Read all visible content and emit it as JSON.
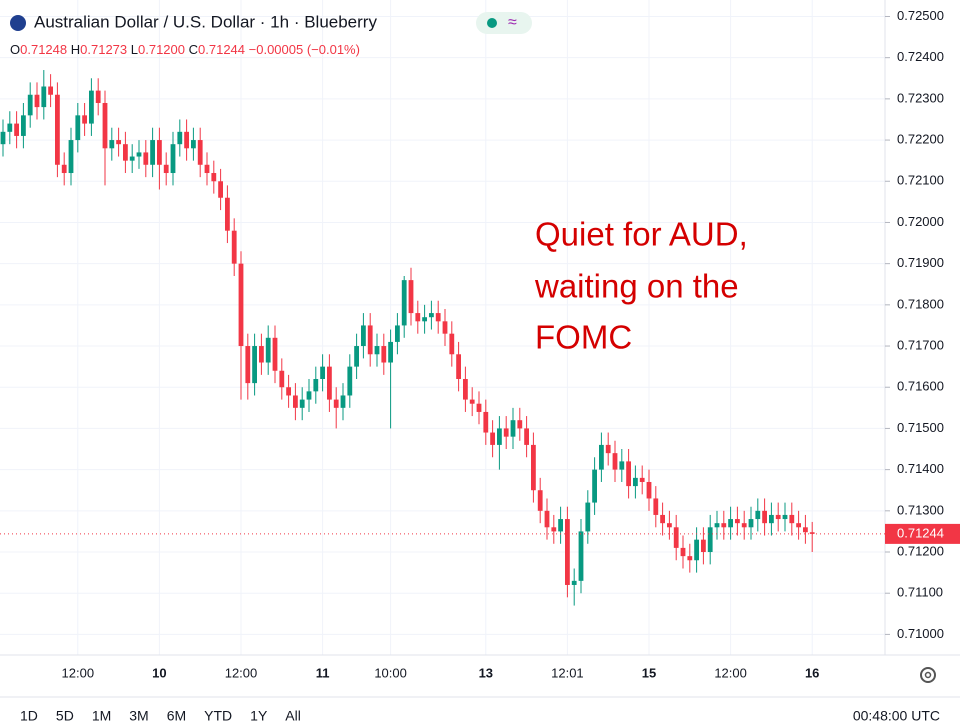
{
  "header": {
    "title": "Australian Dollar / U.S. Dollar · 1h · Blueberry",
    "ohlc": [
      {
        "key": "O",
        "value": "0.71248"
      },
      {
        "key": "H",
        "value": "0.71273"
      },
      {
        "key": "L",
        "value": "0.71200"
      },
      {
        "key": "C",
        "value": "0.71244"
      }
    ],
    "change": "−0.00005 (−0.01%)"
  },
  "toolbar": {
    "ranges": [
      "1D",
      "5D",
      "1M",
      "3M",
      "6M",
      "YTD",
      "1Y",
      "All"
    ],
    "clock": "00:48:00 UTC"
  },
  "chart_data": {
    "type": "candlestick",
    "annotation": [
      "Quiet for AUD,",
      "waiting on the",
      "FOMC"
    ],
    "last_price_label": "0.71244",
    "up_color": "#089981",
    "down_color": "#f23645",
    "grid": true,
    "categories": [
      null,
      null,
      null,
      null,
      null,
      null,
      null,
      null,
      null,
      null,
      null,
      "12:00",
      null,
      null,
      null,
      null,
      null,
      null,
      null,
      null,
      null,
      null,
      null,
      "10",
      null,
      null,
      null,
      null,
      null,
      null,
      null,
      null,
      null,
      null,
      null,
      "12:00",
      null,
      null,
      null,
      null,
      null,
      null,
      null,
      null,
      null,
      null,
      null,
      "11",
      null,
      null,
      null,
      null,
      null,
      null,
      null,
      null,
      null,
      "10:00",
      null,
      null,
      null,
      null,
      null,
      null,
      null,
      null,
      null,
      null,
      null,
      null,
      null,
      "13",
      null,
      null,
      null,
      null,
      null,
      null,
      null,
      null,
      null,
      null,
      null,
      "12:01",
      null,
      null,
      null,
      null,
      null,
      null,
      null,
      null,
      null,
      null,
      null,
      "15",
      null,
      null,
      null,
      null,
      null,
      null,
      null,
      null,
      null,
      null,
      null,
      "12:00",
      null,
      null,
      null,
      null,
      null,
      null,
      null,
      null,
      null,
      null,
      null,
      "16"
    ],
    "open": [
      0.7219,
      0.7222,
      0.7224,
      0.7221,
      0.7226,
      0.7231,
      0.7228,
      0.7233,
      0.7231,
      0.7214,
      0.7212,
      0.722,
      0.7226,
      0.7224,
      0.7232,
      0.7229,
      0.7218,
      0.722,
      0.7219,
      0.7215,
      0.7216,
      0.7217,
      0.7214,
      0.722,
      0.7214,
      0.7212,
      0.7219,
      0.7222,
      0.7218,
      0.722,
      0.7214,
      0.7212,
      0.721,
      0.7206,
      0.7198,
      0.719,
      0.717,
      0.7161,
      0.717,
      0.7166,
      0.7172,
      0.7164,
      0.716,
      0.7158,
      0.7155,
      0.7157,
      0.7159,
      0.7162,
      0.7165,
      0.7157,
      0.7155,
      0.7158,
      0.7165,
      0.717,
      0.7175,
      0.7168,
      0.717,
      0.7166,
      0.7171,
      0.7175,
      0.7186,
      0.7178,
      0.7176,
      0.7177,
      0.7178,
      0.7176,
      0.7173,
      0.7168,
      0.7162,
      0.7157,
      0.7156,
      0.7154,
      0.7149,
      0.7146,
      0.715,
      0.7148,
      0.7152,
      0.715,
      0.7146,
      0.7135,
      0.713,
      0.7126,
      0.7125,
      0.7128,
      0.7112,
      0.7113,
      0.7125,
      0.7132,
      0.714,
      0.7146,
      0.7144,
      0.714,
      0.7142,
      0.7136,
      0.7138,
      0.7137,
      0.7133,
      0.7129,
      0.7127,
      0.7126,
      0.7121,
      0.7119,
      0.7118,
      0.7123,
      0.712,
      0.7126,
      0.7127,
      0.7126,
      0.7128,
      0.7127,
      0.7126,
      0.7128,
      0.713,
      0.7127,
      0.7129,
      0.7128,
      0.7129,
      0.7127,
      0.7126,
      0.71248
    ],
    "high": [
      0.7225,
      0.7227,
      0.7227,
      0.7229,
      0.7234,
      0.7234,
      0.7237,
      0.7236,
      0.7234,
      0.7217,
      0.7223,
      0.7229,
      0.7229,
      0.7235,
      0.7235,
      0.7232,
      0.7223,
      0.7223,
      0.7222,
      0.7219,
      0.722,
      0.722,
      0.7223,
      0.7223,
      0.7217,
      0.7222,
      0.7225,
      0.7225,
      0.7223,
      0.7223,
      0.7217,
      0.7215,
      0.7213,
      0.7209,
      0.7201,
      0.7193,
      0.7173,
      0.7173,
      0.7173,
      0.7175,
      0.7175,
      0.7167,
      0.7163,
      0.7161,
      0.716,
      0.7162,
      0.7165,
      0.7168,
      0.7168,
      0.716,
      0.7161,
      0.7168,
      0.7173,
      0.7178,
      0.7178,
      0.7173,
      0.7173,
      0.7174,
      0.7178,
      0.7187,
      0.7189,
      0.7181,
      0.718,
      0.7181,
      0.7181,
      0.7179,
      0.7176,
      0.7171,
      0.7165,
      0.716,
      0.7159,
      0.7157,
      0.7152,
      0.7153,
      0.7153,
      0.7155,
      0.7155,
      0.7153,
      0.7149,
      0.7138,
      0.7133,
      0.7129,
      0.7131,
      0.7131,
      0.7116,
      0.7128,
      0.7135,
      0.7143,
      0.7149,
      0.7149,
      0.7147,
      0.7145,
      0.7145,
      0.7141,
      0.7141,
      0.714,
      0.7136,
      0.7132,
      0.713,
      0.7129,
      0.7124,
      0.7122,
      0.7126,
      0.7126,
      0.7129,
      0.713,
      0.713,
      0.7131,
      0.7131,
      0.713,
      0.7131,
      0.7133,
      0.7133,
      0.7132,
      0.7132,
      0.7132,
      0.7132,
      0.713,
      0.7129,
      0.71273
    ],
    "low": [
      0.7216,
      0.7219,
      0.7218,
      0.7218,
      0.7223,
      0.7225,
      0.7225,
      0.7228,
      0.7211,
      0.7209,
      0.7209,
      0.7217,
      0.7221,
      0.7221,
      0.7226,
      0.7209,
      0.7215,
      0.7216,
      0.7212,
      0.7212,
      0.7213,
      0.7211,
      0.7211,
      0.7208,
      0.7209,
      0.7209,
      0.7216,
      0.7215,
      0.7215,
      0.7211,
      0.7209,
      0.7207,
      0.7203,
      0.7195,
      0.7187,
      0.7157,
      0.7157,
      0.7158,
      0.7163,
      0.7163,
      0.7161,
      0.7157,
      0.7155,
      0.7152,
      0.7152,
      0.7154,
      0.7156,
      0.7159,
      0.7154,
      0.715,
      0.7152,
      0.7155,
      0.7162,
      0.7167,
      0.7165,
      0.7165,
      0.7163,
      0.715,
      0.7168,
      0.7172,
      0.7175,
      0.7173,
      0.7173,
      0.7174,
      0.7173,
      0.717,
      0.7165,
      0.7159,
      0.7154,
      0.7153,
      0.7151,
      0.7146,
      0.7143,
      0.714,
      0.7145,
      0.7145,
      0.7147,
      0.7143,
      0.7132,
      0.7127,
      0.7123,
      0.7122,
      0.7122,
      0.7109,
      0.7107,
      0.711,
      0.7122,
      0.7129,
      0.7137,
      0.7141,
      0.7137,
      0.7137,
      0.7133,
      0.7133,
      0.7134,
      0.713,
      0.7126,
      0.7124,
      0.7123,
      0.7118,
      0.7116,
      0.7115,
      0.7115,
      0.7117,
      0.7117,
      0.7123,
      0.7123,
      0.7123,
      0.7124,
      0.7123,
      0.7123,
      0.7125,
      0.7124,
      0.7124,
      0.7125,
      0.7125,
      0.7124,
      0.7123,
      0.7122,
      0.712
    ],
    "close": [
      0.7222,
      0.7224,
      0.7221,
      0.7226,
      0.7231,
      0.7228,
      0.7233,
      0.7231,
      0.7214,
      0.7212,
      0.722,
      0.7226,
      0.7224,
      0.7232,
      0.7229,
      0.7218,
      0.722,
      0.7219,
      0.7215,
      0.7216,
      0.7217,
      0.7214,
      0.722,
      0.7214,
      0.7212,
      0.7219,
      0.7222,
      0.7218,
      0.722,
      0.7214,
      0.7212,
      0.721,
      0.7206,
      0.7198,
      0.719,
      0.717,
      0.7161,
      0.717,
      0.7166,
      0.7172,
      0.7164,
      0.716,
      0.7158,
      0.7155,
      0.7157,
      0.7159,
      0.7162,
      0.7165,
      0.7157,
      0.7155,
      0.7158,
      0.7165,
      0.717,
      0.7175,
      0.7168,
      0.717,
      0.7166,
      0.7171,
      0.7175,
      0.7186,
      0.7178,
      0.7176,
      0.7177,
      0.7178,
      0.7176,
      0.7173,
      0.7168,
      0.7162,
      0.7157,
      0.7156,
      0.7154,
      0.7149,
      0.7146,
      0.715,
      0.7148,
      0.7152,
      0.715,
      0.7146,
      0.7135,
      0.713,
      0.7126,
      0.7125,
      0.7128,
      0.7112,
      0.7113,
      0.7125,
      0.7132,
      0.714,
      0.7146,
      0.7144,
      0.714,
      0.7142,
      0.7136,
      0.7138,
      0.7137,
      0.7133,
      0.7129,
      0.7127,
      0.7126,
      0.7121,
      0.7119,
      0.7118,
      0.7123,
      0.712,
      0.7126,
      0.7127,
      0.7126,
      0.7128,
      0.7127,
      0.7126,
      0.7128,
      0.713,
      0.7127,
      0.7129,
      0.7128,
      0.7129,
      0.7127,
      0.7126,
      0.71248,
      0.71244
    ],
    "ylim": [
      0.7095,
      0.7254
    ],
    "yticks": [
      {
        "value": 0.725,
        "label": "0.72500"
      },
      {
        "value": 0.724,
        "label": "0.72400"
      },
      {
        "value": 0.723,
        "label": "0.72300"
      },
      {
        "value": 0.722,
        "label": "0.72200"
      },
      {
        "value": 0.721,
        "label": "0.72100"
      },
      {
        "value": 0.72,
        "label": "0.72000"
      },
      {
        "value": 0.719,
        "label": "0.71900"
      },
      {
        "value": 0.718,
        "label": "0.71800"
      },
      {
        "value": 0.717,
        "label": "0.71700"
      },
      {
        "value": 0.716,
        "label": "0.71600"
      },
      {
        "value": 0.715,
        "label": "0.71500"
      },
      {
        "value": 0.714,
        "label": "0.71400"
      },
      {
        "value": 0.713,
        "label": "0.71300"
      },
      {
        "value": 0.712,
        "label": "0.71200"
      },
      {
        "value": 0.711,
        "label": "0.71100"
      },
      {
        "value": 0.71,
        "label": "0.71000"
      }
    ]
  }
}
